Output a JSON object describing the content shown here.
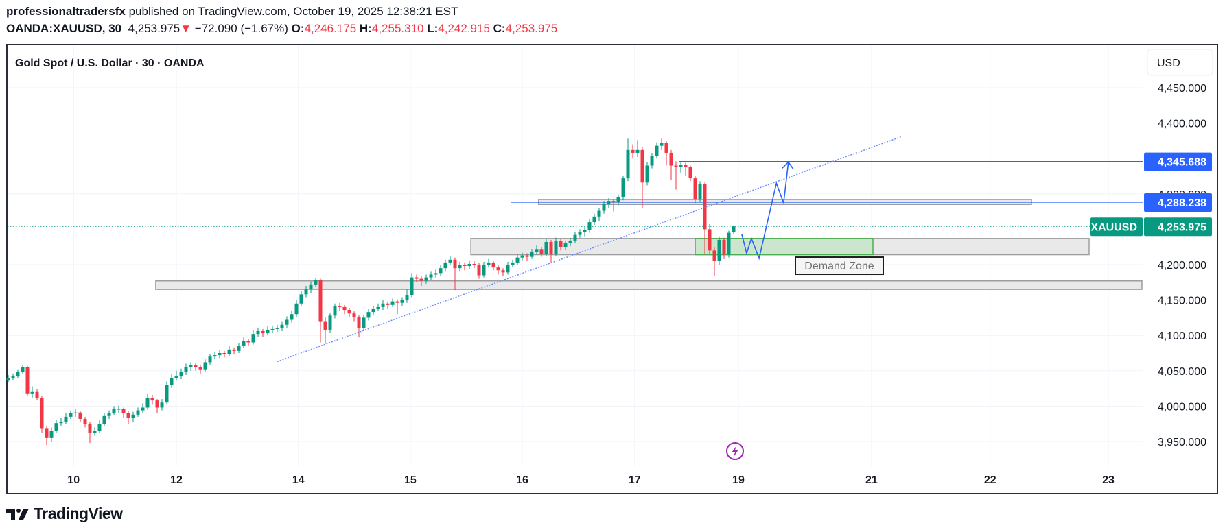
{
  "header": {
    "author": "professionaltradersfx",
    "published": "published on TradingView.com, October 19, 2025 12:38:21 EST",
    "symbol": "OANDA:XAUUSD, 30",
    "last": "4,253.975",
    "change": "−72.090 (−1.67%)",
    "o_label": "O:",
    "o": "4,246.175",
    "h_label": "H:",
    "h": "4,255.310",
    "l_label": "L:",
    "l": "4,242.915",
    "c_label": "C:",
    "c": "4,253.975",
    "down_arrow_icon": "triangle-down"
  },
  "chart_title": "Gold Spot / U.S. Dollar · 30 · OANDA",
  "currency_button": "USD",
  "brand": "TradingView",
  "colors": {
    "up": "#089981",
    "down": "#F23645",
    "drawing": "#2962FF",
    "zone": "#c8e6c9",
    "box": "#e9e9e9",
    "event": "#9c27b0"
  },
  "chart_data": {
    "type": "candlestick",
    "interval": "30",
    "ylim": [
      3925,
      4510
    ],
    "y_ticks": [
      {
        "value": 4450,
        "label": "4,450.000"
      },
      {
        "value": 4400,
        "label": "4,400.000"
      },
      {
        "value": 4300,
        "label": "4,300.000"
      },
      {
        "value": 4200,
        "label": "4,200.000"
      },
      {
        "value": 4150,
        "label": "4,150.000"
      },
      {
        "value": 4100,
        "label": "4,100.000"
      },
      {
        "value": 4050,
        "label": "4,050.000"
      },
      {
        "value": 4000,
        "label": "4,000.000"
      },
      {
        "value": 3950,
        "label": "3,950.000"
      }
    ],
    "x_ticks": [
      {
        "bar": 13.6,
        "label": "10"
      },
      {
        "bar": 35,
        "label": "12"
      },
      {
        "bar": 60.4,
        "label": "14"
      },
      {
        "bar": 83.7,
        "label": "15"
      },
      {
        "bar": 107,
        "label": "16"
      },
      {
        "bar": 130.4,
        "label": "17"
      },
      {
        "bar": 152,
        "label": "19"
      },
      {
        "bar": 179.7,
        "label": "21"
      },
      {
        "bar": 204.4,
        "label": "22"
      },
      {
        "bar": 229,
        "label": "23"
      }
    ],
    "grid": true,
    "ohlc": [
      [
        4036,
        4044,
        4034,
        4040
      ],
      [
        4040,
        4046,
        4037,
        4042
      ],
      [
        4042,
        4052,
        4040,
        4048
      ],
      [
        4048,
        4058,
        4046,
        4055
      ],
      [
        4055,
        4057,
        4015,
        4018
      ],
      [
        4018,
        4028,
        4012,
        4020
      ],
      [
        4020,
        4024,
        4008,
        4012
      ],
      [
        4012,
        4015,
        3962,
        3968
      ],
      [
        3968,
        3972,
        3945,
        3955
      ],
      [
        3955,
        3970,
        3950,
        3965
      ],
      [
        3965,
        3980,
        3962,
        3976
      ],
      [
        3976,
        3983,
        3972,
        3978
      ],
      [
        3978,
        3990,
        3975,
        3985
      ],
      [
        3985,
        3994,
        3982,
        3990
      ],
      [
        3990,
        3996,
        3985,
        3991
      ],
      [
        3991,
        3993,
        3978,
        3982
      ],
      [
        3982,
        3985,
        3970,
        3975
      ],
      [
        3975,
        3978,
        3948,
        3962
      ],
      [
        3962,
        3970,
        3958,
        3965
      ],
      [
        3965,
        3980,
        3962,
        3975
      ],
      [
        3975,
        3990,
        3972,
        3986
      ],
      [
        3986,
        3994,
        3982,
        3990
      ],
      [
        3990,
        4000,
        3987,
        3996
      ],
      [
        3996,
        4001,
        3990,
        3996
      ],
      [
        3996,
        3998,
        3984,
        3990
      ],
      [
        3990,
        3993,
        3975,
        3983
      ],
      [
        3983,
        3992,
        3978,
        3988
      ],
      [
        3988,
        3998,
        3985,
        3994
      ],
      [
        3994,
        4004,
        3990,
        3998
      ],
      [
        3998,
        4018,
        3995,
        4012
      ],
      [
        4012,
        4016,
        4002,
        4008
      ],
      [
        4008,
        4010,
        3990,
        3998
      ],
      [
        3998,
        4010,
        3994,
        4005
      ],
      [
        4005,
        4035,
        4002,
        4030
      ],
      [
        4030,
        4045,
        4026,
        4040
      ],
      [
        4040,
        4050,
        4036,
        4042
      ],
      [
        4042,
        4053,
        4038,
        4048
      ],
      [
        4048,
        4060,
        4044,
        4055
      ],
      [
        4055,
        4062,
        4050,
        4058
      ],
      [
        4058,
        4061,
        4050,
        4055
      ],
      [
        4055,
        4058,
        4046,
        4052
      ],
      [
        4052,
        4066,
        4049,
        4062
      ],
      [
        4062,
        4074,
        4058,
        4070
      ],
      [
        4070,
        4077,
        4066,
        4072
      ],
      [
        4072,
        4079,
        4068,
        4075
      ],
      [
        4075,
        4078,
        4069,
        4074
      ],
      [
        4074,
        4085,
        4071,
        4080
      ],
      [
        4080,
        4083,
        4073,
        4078
      ],
      [
        4078,
        4089,
        4075,
        4085
      ],
      [
        4085,
        4097,
        4082,
        4092
      ],
      [
        4092,
        4095,
        4085,
        4090
      ],
      [
        4090,
        4107,
        4087,
        4102
      ],
      [
        4102,
        4111,
        4098,
        4106
      ],
      [
        4106,
        4109,
        4098,
        4103
      ],
      [
        4103,
        4113,
        4100,
        4108
      ],
      [
        4108,
        4114,
        4104,
        4109
      ],
      [
        4109,
        4115,
        4105,
        4110
      ],
      [
        4110,
        4120,
        4106,
        4115
      ],
      [
        4115,
        4127,
        4111,
        4122
      ],
      [
        4122,
        4135,
        4118,
        4130
      ],
      [
        4130,
        4150,
        4126,
        4145
      ],
      [
        4145,
        4163,
        4141,
        4158
      ],
      [
        4158,
        4170,
        4154,
        4165
      ],
      [
        4165,
        4176,
        4160,
        4172
      ],
      [
        4172,
        4181,
        4168,
        4178
      ],
      [
        4178,
        4180,
        4090,
        4120
      ],
      [
        4120,
        4126,
        4088,
        4108
      ],
      [
        4108,
        4132,
        4104,
        4128
      ],
      [
        4128,
        4145,
        4124,
        4141
      ],
      [
        4141,
        4146,
        4135,
        4140
      ],
      [
        4140,
        4143,
        4130,
        4136
      ],
      [
        4136,
        4139,
        4126,
        4131
      ],
      [
        4131,
        4134,
        4120,
        4126
      ],
      [
        4126,
        4129,
        4097,
        4110
      ],
      [
        4110,
        4129,
        4106,
        4125
      ],
      [
        4125,
        4137,
        4121,
        4133
      ],
      [
        4133,
        4142,
        4129,
        4138
      ],
      [
        4138,
        4145,
        4135,
        4140
      ],
      [
        4140,
        4150,
        4136,
        4145
      ],
      [
        4145,
        4148,
        4138,
        4143
      ],
      [
        4143,
        4152,
        4140,
        4148
      ],
      [
        4148,
        4151,
        4130,
        4146
      ],
      [
        4146,
        4154,
        4142,
        4150
      ],
      [
        4150,
        4165,
        4146,
        4157
      ],
      [
        4157,
        4188,
        4154,
        4182
      ],
      [
        4182,
        4186,
        4175,
        4180
      ],
      [
        4180,
        4184,
        4170,
        4177
      ],
      [
        4177,
        4186,
        4173,
        4182
      ],
      [
        4182,
        4190,
        4178,
        4186
      ],
      [
        4186,
        4193,
        4182,
        4188
      ],
      [
        4188,
        4199,
        4184,
        4195
      ],
      [
        4195,
        4207,
        4190,
        4203
      ],
      [
        4203,
        4212,
        4199,
        4207
      ],
      [
        4207,
        4210,
        4164,
        4195
      ],
      [
        4195,
        4204,
        4190,
        4200
      ],
      [
        4200,
        4203,
        4192,
        4198
      ],
      [
        4198,
        4206,
        4194,
        4201
      ],
      [
        4201,
        4205,
        4195,
        4200
      ],
      [
        4200,
        4202,
        4180,
        4185
      ],
      [
        4185,
        4204,
        4182,
        4200
      ],
      [
        4200,
        4208,
        4196,
        4203
      ],
      [
        4203,
        4206,
        4192,
        4196
      ],
      [
        4196,
        4199,
        4186,
        4192
      ],
      [
        4192,
        4195,
        4184,
        4189
      ],
      [
        4189,
        4204,
        4186,
        4200
      ],
      [
        4200,
        4207,
        4196,
        4203
      ],
      [
        4203,
        4214,
        4199,
        4210
      ],
      [
        4210,
        4217,
        4206,
        4213
      ],
      [
        4213,
        4216,
        4205,
        4211
      ],
      [
        4211,
        4222,
        4208,
        4218
      ],
      [
        4218,
        4227,
        4214,
        4222
      ],
      [
        4222,
        4225,
        4211,
        4215
      ],
      [
        4215,
        4237,
        4212,
        4232
      ],
      [
        4232,
        4235,
        4203,
        4215
      ],
      [
        4215,
        4238,
        4212,
        4233
      ],
      [
        4233,
        4236,
        4220,
        4225
      ],
      [
        4225,
        4234,
        4221,
        4230
      ],
      [
        4230,
        4238,
        4226,
        4234
      ],
      [
        4234,
        4246,
        4230,
        4242
      ],
      [
        4242,
        4250,
        4238,
        4246
      ],
      [
        4246,
        4253,
        4240,
        4249
      ],
      [
        4249,
        4265,
        4245,
        4260
      ],
      [
        4260,
        4272,
        4256,
        4268
      ],
      [
        4268,
        4280,
        4262,
        4276
      ],
      [
        4276,
        4290,
        4272,
        4286
      ],
      [
        4286,
        4294,
        4280,
        4290
      ],
      [
        4290,
        4293,
        4275,
        4288
      ],
      [
        4288,
        4299,
        4284,
        4295
      ],
      [
        4295,
        4326,
        4291,
        4322
      ],
      [
        4322,
        4378,
        4318,
        4362
      ],
      [
        4362,
        4370,
        4350,
        4358
      ],
      [
        4358,
        4376,
        4352,
        4362
      ],
      [
        4362,
        4366,
        4280,
        4316
      ],
      [
        4316,
        4345,
        4312,
        4340
      ],
      [
        4340,
        4358,
        4336,
        4354
      ],
      [
        4354,
        4373,
        4350,
        4368
      ],
      [
        4368,
        4378,
        4362,
        4372
      ],
      [
        4372,
        4375,
        4340,
        4358
      ],
      [
        4358,
        4362,
        4320,
        4340
      ],
      [
        4340,
        4346,
        4306,
        4338
      ],
      [
        4338,
        4345,
        4330,
        4341
      ],
      [
        4341,
        4344,
        4326,
        4338
      ],
      [
        4338,
        4340,
        4318,
        4322
      ],
      [
        4322,
        4325,
        4287,
        4292
      ],
      [
        4292,
        4318,
        4288,
        4314
      ],
      [
        4314,
        4316,
        4214,
        4250
      ],
      [
        4250,
        4257,
        4214,
        4220
      ],
      [
        4220,
        4224,
        4184,
        4205
      ],
      [
        4205,
        4240,
        4200,
        4235
      ],
      [
        4235,
        4238,
        4208,
        4214
      ],
      [
        4214,
        4248,
        4210,
        4245
      ],
      [
        4246.175,
        4255.31,
        4242.915,
        4253.975
      ]
    ],
    "last_price": {
      "value": 4253.975,
      "label": "4,253.975",
      "symbol": "XAUUSD"
    },
    "horizontal_lines": [
      {
        "value": 4345.688,
        "label": "4,345.688",
        "from_bar": 139.7
      },
      {
        "value": 4288.238,
        "label": "4,288.238",
        "from_bar": 104.7
      }
    ],
    "boxes": [
      {
        "kind": "gray",
        "from_bar": 30.7,
        "to_bar": 236,
        "low": 4165,
        "high": 4177
      },
      {
        "kind": "gray",
        "from_bar": 110.4,
        "to_bar": 213,
        "low": 4285,
        "high": 4292
      },
      {
        "kind": "gray",
        "from_bar": 96.3,
        "to_bar": 225,
        "low": 4214,
        "high": 4237
      },
      {
        "kind": "green",
        "from_bar": 143,
        "to_bar": 180,
        "low": 4214,
        "high": 4237
      }
    ],
    "trendline": [
      [
        56,
        4063
      ],
      [
        186,
        4381
      ]
    ],
    "projection_path": [
      [
        152.7,
        4243
      ],
      [
        153.7,
        4216
      ],
      [
        154.7,
        4237
      ],
      [
        156.3,
        4209
      ],
      [
        159.9,
        4315
      ],
      [
        161.4,
        4287
      ],
      [
        162.4,
        4345
      ]
    ],
    "annotation": {
      "text": "Demand Zone",
      "bar": 173,
      "price": 4199
    }
  }
}
